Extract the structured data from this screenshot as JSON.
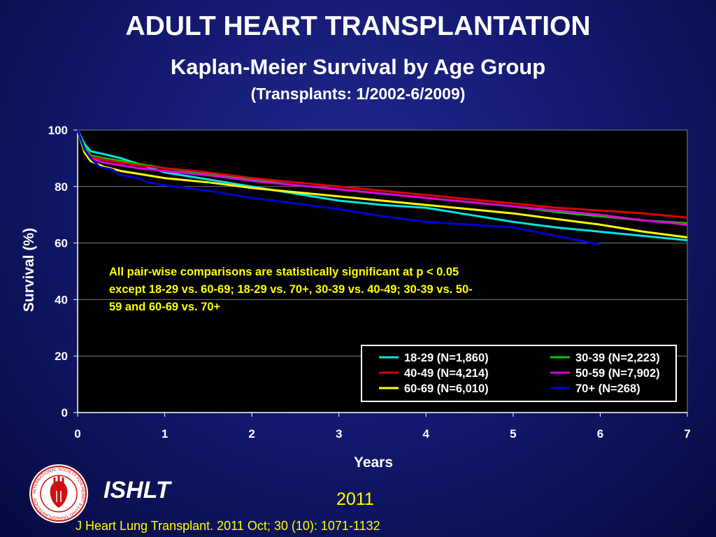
{
  "slide": {
    "title": "ADULT HEART TRANSPLANTATION",
    "subtitle": "Kaplan-Meier Survival by Age Group",
    "subtitle2": "(Transplants: 1/2002-6/2009)",
    "org": "ISHLT",
    "year": "2011",
    "citation": "J Heart Lung Transplant. 2011 Oct; 30 (10): 1071-1132",
    "logo_text": "INTERNATIONAL SOCIETY FOR HEART & LUNG TRANSPLANTATION"
  },
  "chart_data": {
    "type": "line",
    "xlabel": "Years",
    "ylabel": "Survival (%)",
    "xlim": [
      0,
      7
    ],
    "ylim": [
      0,
      100
    ],
    "xticks": [
      0,
      1,
      2,
      3,
      4,
      5,
      6,
      7
    ],
    "yticks": [
      0,
      20,
      40,
      60,
      80,
      100
    ],
    "legend_position": "bottom-right",
    "annotation": "All pair-wise comparisons are statistically significant at p < 0.05 except 18-29 vs. 60-69; 18-29 vs. 70+, 30-39 vs. 40-49; 30-39 vs. 50-59 and 60-69 vs. 70+",
    "series": [
      {
        "name": "18-29 (N=1,860)",
        "color": "#00e5e5",
        "x": [
          0,
          0.08,
          0.15,
          0.3,
          0.5,
          0.7,
          1,
          1.5,
          2,
          2.5,
          3,
          3.5,
          4,
          4.5,
          5,
          5.5,
          6,
          6.5,
          7
        ],
        "y": [
          100,
          95,
          92.5,
          91.5,
          90,
          88,
          85,
          82.5,
          80,
          77.5,
          75,
          73.5,
          72.5,
          70,
          67.5,
          65.5,
          64,
          62.5,
          61
        ]
      },
      {
        "name": "30-39 (N=2,223)",
        "color": "#00cc00",
        "x": [
          0,
          0.08,
          0.15,
          0.3,
          0.5,
          0.7,
          1,
          1.5,
          2,
          2.5,
          3,
          3.5,
          4,
          4.5,
          5,
          5.5,
          6,
          6.5,
          7
        ],
        "y": [
          100,
          94,
          91,
          90,
          89,
          88,
          86.5,
          84.5,
          82.5,
          80.5,
          79,
          77.5,
          76,
          74.5,
          73,
          71,
          69.5,
          68,
          67
        ]
      },
      {
        "name": "40-49 (N=4,214)",
        "color": "#dd0000",
        "x": [
          0,
          0.08,
          0.15,
          0.3,
          0.5,
          0.7,
          1,
          1.5,
          2,
          2.5,
          3,
          3.5,
          4,
          4.5,
          5,
          5.5,
          6,
          6.5,
          7
        ],
        "y": [
          100,
          93,
          90.5,
          89.5,
          88.5,
          87.5,
          86.5,
          85,
          83,
          81.5,
          80,
          78.5,
          77,
          75.5,
          74,
          72.5,
          71.5,
          70.5,
          69
        ]
      },
      {
        "name": "50-59 (N=7,902)",
        "color": "#dd00dd",
        "x": [
          0,
          0.08,
          0.15,
          0.3,
          0.5,
          0.7,
          1,
          1.5,
          2,
          2.5,
          3,
          3.5,
          4,
          4.5,
          5,
          5.5,
          6,
          6.5,
          7
        ],
        "y": [
          100,
          92.5,
          90,
          88.5,
          87.5,
          86.5,
          85.5,
          84,
          82,
          80.5,
          79,
          77.5,
          76,
          74.5,
          73,
          71.5,
          70,
          68,
          66.5
        ]
      },
      {
        "name": "60-69 (N=6,010)",
        "color": "#ffff00",
        "x": [
          0,
          0.08,
          0.15,
          0.3,
          0.5,
          0.7,
          1,
          1.5,
          2,
          2.5,
          3,
          3.5,
          4,
          4.5,
          5,
          5.5,
          6,
          6.5,
          7
        ],
        "y": [
          100,
          92,
          89,
          87,
          85.5,
          84.5,
          83,
          81.5,
          79.5,
          78,
          76.5,
          75,
          73.5,
          72,
          70.5,
          68.5,
          66.5,
          64,
          62
        ]
      },
      {
        "name": "70+ (N=268)",
        "color": "#0000cc",
        "x": [
          0,
          0.08,
          0.15,
          0.25,
          0.4,
          0.5,
          0.7,
          0.8,
          1,
          1.5,
          2,
          2.5,
          3,
          3.5,
          4,
          4.5,
          5,
          5.5,
          6
        ],
        "y": [
          100,
          93,
          90,
          87,
          86,
          84,
          83,
          81.5,
          80.5,
          78.5,
          76,
          74,
          72,
          69.5,
          67.5,
          66.5,
          65.5,
          62.5,
          59.5
        ]
      }
    ]
  }
}
